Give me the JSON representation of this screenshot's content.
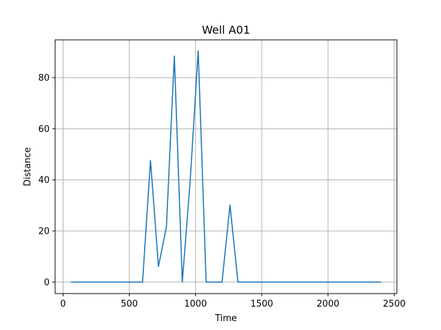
{
  "chart_data": {
    "type": "line",
    "title": "Well A01",
    "xlabel": "Time",
    "ylabel": "Distance",
    "xlim": [
      -60,
      2520
    ],
    "ylim": [
      -4.5,
      94.8
    ],
    "xticks": [
      0,
      500,
      1000,
      1500,
      2000,
      2500
    ],
    "yticks": [
      0,
      20,
      40,
      60,
      80
    ],
    "grid": true,
    "colors": {
      "series": "#1f77b4",
      "grid": "#b0b0b0"
    },
    "series": [
      {
        "x": [
          60,
          120,
          180,
          240,
          300,
          360,
          420,
          480,
          540,
          600,
          660,
          720,
          780,
          840,
          900,
          960,
          1020,
          1080,
          1140,
          1200,
          1260,
          1320,
          1380,
          1440,
          1500,
          1560,
          1620,
          1680,
          1740,
          1800,
          1860,
          1920,
          1980,
          2040,
          2100,
          2160,
          2220,
          2280,
          2340,
          2400
        ],
        "y": [
          0,
          0,
          0,
          0,
          0,
          0,
          0,
          0,
          0,
          0,
          47.6,
          6.1,
          21.5,
          88.5,
          0,
          40,
          90.5,
          0,
          0,
          0,
          30.2,
          0,
          0,
          0,
          0,
          0,
          0,
          0,
          0,
          0,
          0,
          0,
          0,
          0,
          0,
          0,
          0,
          0,
          0,
          0
        ]
      }
    ]
  }
}
